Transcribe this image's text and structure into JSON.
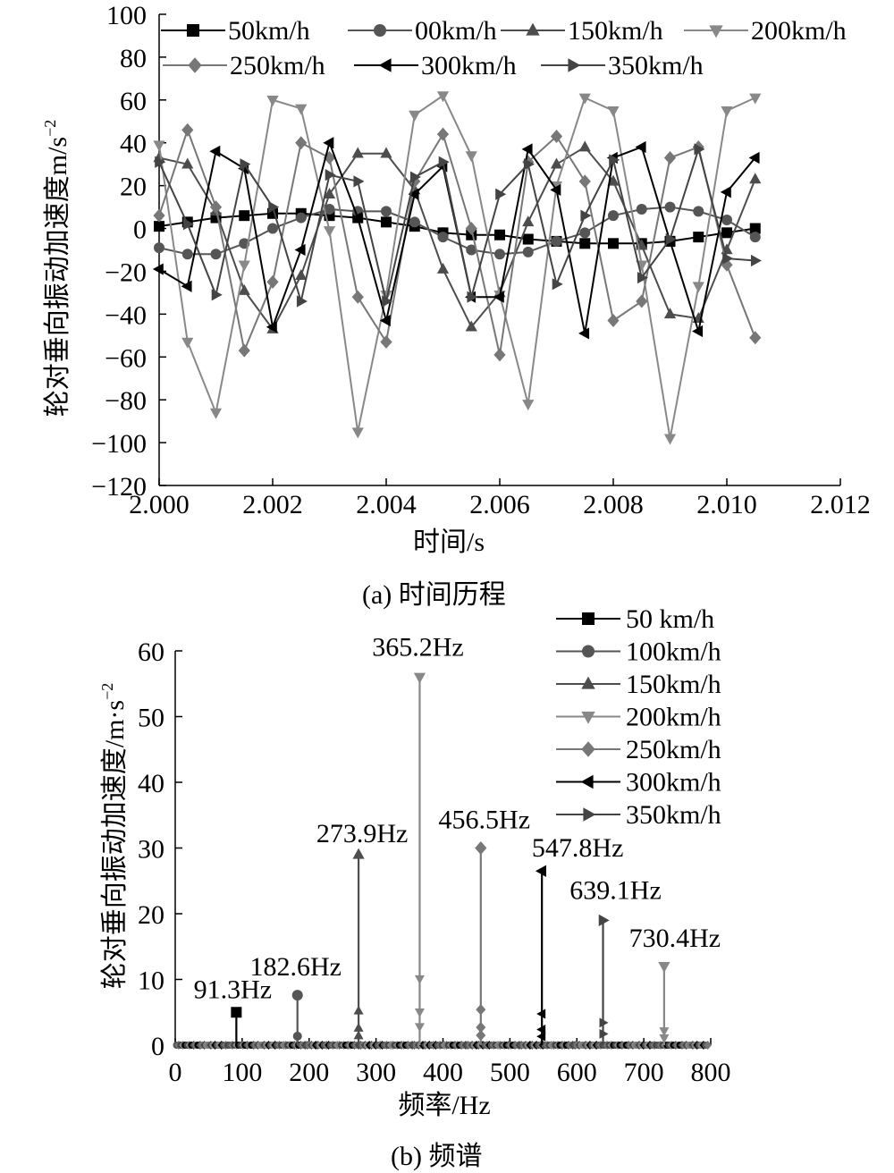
{
  "captions": {
    "a": "(a) 时间历程",
    "b": "(b) 频谱"
  },
  "chart_data": [
    {
      "type": "line",
      "id": "time-history",
      "xlabel": "时间/s",
      "ylabel": "轮对垂向振动加速度m/s",
      "ylabel_sup": "−2",
      "xlim": [
        2.0,
        2.012
      ],
      "ylim": [
        -120,
        100
      ],
      "xticks": [
        "2.000",
        "2.002",
        "2.004",
        "2.006",
        "2.008",
        "2.010",
        "2.012"
      ],
      "yticks": [
        "100",
        "80",
        "60",
        "40",
        "20",
        "0",
        "−20",
        "−40",
        "−60",
        "−80",
        "−100",
        "−120"
      ],
      "grid": false,
      "legend_position": "top",
      "x": [
        2.0,
        2.0005,
        2.001,
        2.0015,
        2.002,
        2.0025,
        2.003,
        2.0035,
        2.004,
        2.0045,
        2.005,
        2.0055,
        2.006,
        2.0065,
        2.007,
        2.0075,
        2.008,
        2.0085,
        2.009,
        2.0095,
        2.01,
        2.0105
      ],
      "series": [
        {
          "name": "50km/h",
          "color": "#000000",
          "marker": "square",
          "values": [
            1,
            3,
            5,
            6,
            7,
            7,
            6,
            5,
            3,
            1,
            -2,
            -3,
            -3,
            -5,
            -6,
            -7,
            -7,
            -7,
            -6,
            -4,
            -2,
            0
          ]
        },
        {
          "name": "00km/h",
          "color": "#555555",
          "marker": "circle",
          "values": [
            -9,
            -12,
            -12,
            -7,
            0,
            5,
            9,
            8,
            8,
            3,
            -4,
            -10,
            -12,
            -11,
            -6,
            -2,
            6,
            9,
            10,
            8,
            4,
            -4
          ]
        },
        {
          "name": "150km/h",
          "color": "#4d4d4d",
          "marker": "triangle-up",
          "values": [
            33,
            30,
            8,
            -29,
            -47,
            -22,
            16,
            35,
            35,
            18,
            -19,
            -46,
            -30,
            3,
            30,
            38,
            22,
            -8,
            -40,
            -42,
            -10,
            23
          ]
        },
        {
          "name": "200km/h",
          "color": "#888888",
          "marker": "triangle-down",
          "values": [
            39,
            -53,
            -86,
            -17,
            60,
            56,
            -1,
            -95,
            -31,
            53,
            62,
            34,
            -31,
            -82,
            20,
            61,
            55,
            -17,
            -98,
            -27,
            55,
            61
          ]
        },
        {
          "name": "250km/h",
          "color": "#777777",
          "marker": "diamond",
          "values": [
            6,
            46,
            10,
            -57,
            -25,
            40,
            33,
            -32,
            -53,
            22,
            44,
            0,
            -59,
            31,
            43,
            22,
            -43,
            -34,
            33,
            38,
            -17,
            -51
          ]
        },
        {
          "name": "300km/h",
          "color": "#000000",
          "marker": "triangle-left",
          "values": [
            -19,
            -27,
            36,
            28,
            -46,
            -10,
            40,
            5,
            -43,
            16,
            29,
            -32,
            -32,
            37,
            18,
            -49,
            33,
            38,
            -6,
            -48,
            17,
            33
          ]
        },
        {
          "name": "350km/h",
          "color": "#444444",
          "marker": "triangle-right",
          "values": [
            31,
            2,
            -31,
            30,
            10,
            -34,
            25,
            22,
            -34,
            24,
            31,
            -32,
            16,
            30,
            -26,
            6,
            32,
            -23,
            -5,
            37,
            -14,
            -15
          ]
        }
      ]
    },
    {
      "type": "spectrum",
      "id": "frequency-spectrum",
      "xlabel": "频率/Hz",
      "ylabel": "轮对垂向振动加速度/m·s",
      "ylabel_sup": "−2",
      "xlim": [
        0,
        800
      ],
      "ylim": [
        0,
        60
      ],
      "xticks": [
        "0",
        "100",
        "200",
        "300",
        "400",
        "500",
        "600",
        "700",
        "800"
      ],
      "yticks": [
        "0",
        "10",
        "20",
        "30",
        "40",
        "50",
        "60"
      ],
      "grid": false,
      "legend_position": "top-right",
      "series": [
        {
          "name": "50 km/h",
          "color": "#000000",
          "marker": "square",
          "peaks": [
            {
              "x": 91.3,
              "y": 5.0,
              "label": "91.3Hz"
            }
          ]
        },
        {
          "name": "100km/h",
          "color": "#555555",
          "marker": "circle",
          "peaks": [
            {
              "x": 182.6,
              "y": 7.6,
              "label": "182.6Hz"
            }
          ]
        },
        {
          "name": "150km/h",
          "color": "#4d4d4d",
          "marker": "triangle-up",
          "peaks": [
            {
              "x": 273.9,
              "y": 29.0,
              "label": "273.9Hz"
            }
          ]
        },
        {
          "name": "200km/h",
          "color": "#888888",
          "marker": "triangle-down",
          "peaks": [
            {
              "x": 365.2,
              "y": 56.0,
              "label": "365.2Hz"
            },
            {
              "x": 730.4,
              "y": 12.0,
              "label": "730.4Hz"
            }
          ]
        },
        {
          "name": "250km/h",
          "color": "#777777",
          "marker": "diamond",
          "peaks": [
            {
              "x": 456.5,
              "y": 30.0,
              "label": "456.5Hz"
            }
          ]
        },
        {
          "name": "300km/h",
          "color": "#000000",
          "marker": "triangle-left",
          "peaks": [
            {
              "x": 547.8,
              "y": 26.5,
              "label": "547.8Hz"
            }
          ]
        },
        {
          "name": "350km/h",
          "color": "#444444",
          "marker": "triangle-right",
          "peaks": [
            {
              "x": 639.1,
              "y": 19.0,
              "label": "639.1Hz"
            }
          ]
        }
      ]
    }
  ]
}
